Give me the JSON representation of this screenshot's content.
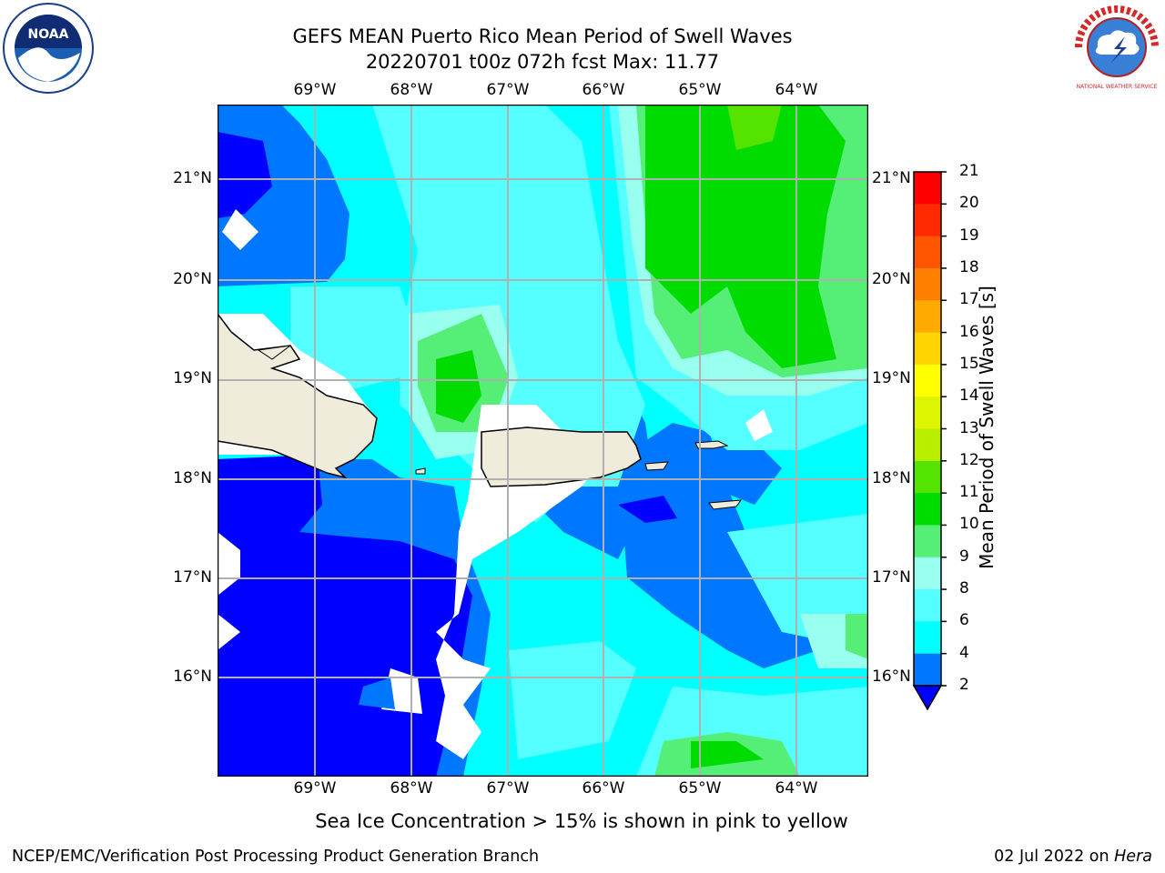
{
  "header": {
    "title_line1": "GEFS MEAN Puerto Rico Mean Period of Swell Waves",
    "title_line2": "20220701 t00z 072h fcst   Max: 11.77"
  },
  "logos": {
    "left": "NOAA",
    "right": "NATIONAL WEATHER SERVICE"
  },
  "map": {
    "lon_labels": [
      "69°W",
      "68°W",
      "67°W",
      "66°W",
      "65°W",
      "64°W"
    ],
    "lat_labels": [
      "21°N",
      "20°N",
      "19°N",
      "18°N",
      "17°N",
      "16°N"
    ],
    "land_color": "#efecdc",
    "grid_color": "#b0b0b0"
  },
  "colorbar": {
    "label": "Mean Period of Swell Waves [s]",
    "ticks": [
      "21",
      "20",
      "19",
      "18",
      "17",
      "16",
      "15",
      "14",
      "13",
      "12",
      "11",
      "10",
      "9",
      "8",
      "6",
      "4",
      "2"
    ],
    "colors": [
      "#ff0000",
      "#ff2a00",
      "#ff5500",
      "#ff8000",
      "#ffaa00",
      "#ffd400",
      "#ffff00",
      "#ddf600",
      "#bbef00",
      "#55e300",
      "#00dc00",
      "#55ee77",
      "#99ffee",
      "#55ffff",
      "#00ffff",
      "#0077ff",
      "#0000ff"
    ]
  },
  "footer": {
    "note": "Sea Ice Concentration > 15% is shown in pink to yellow",
    "left": "NCEP/EMC/Verification Post Processing Product Generation Branch",
    "right_date": "02 Jul 2022 on ",
    "right_host": "Hera"
  }
}
